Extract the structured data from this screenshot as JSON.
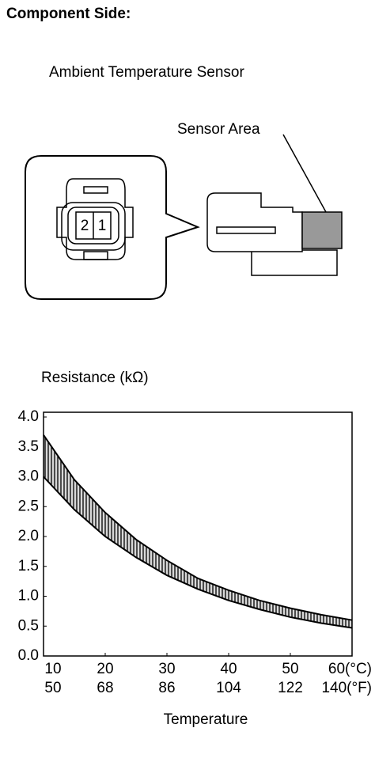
{
  "header": {
    "title": "Component Side:"
  },
  "diagram": {
    "title": "Ambient Temperature Sensor",
    "callout": "Sensor Area",
    "pins": [
      "2",
      "1"
    ]
  },
  "chart_data": {
    "type": "band",
    "title": "Resistance (kΩ)",
    "xlabel": "Temperature",
    "x": [
      10,
      15,
      20,
      25,
      30,
      35,
      40,
      45,
      50,
      55,
      60
    ],
    "upper": [
      3.7,
      2.95,
      2.4,
      1.95,
      1.6,
      1.3,
      1.1,
      0.93,
      0.8,
      0.69,
      0.6
    ],
    "lower": [
      3.0,
      2.45,
      2.0,
      1.65,
      1.35,
      1.12,
      0.93,
      0.78,
      0.65,
      0.55,
      0.47
    ],
    "color": "#000000",
    "xlim": [
      10,
      60
    ],
    "xticks": [
      10,
      20,
      30,
      40,
      50,
      {
        "value": 60,
        "label": "60(°C)"
      }
    ],
    "x2lim": [
      50,
      140
    ],
    "x2ticks": [
      50,
      68,
      86,
      104,
      122,
      {
        "value": 140,
        "label": "140(°F)"
      }
    ],
    "ylim": [
      0,
      4
    ],
    "yticks": [
      {
        "value": 0,
        "label": "0.0"
      },
      0.5,
      {
        "value": 1,
        "label": "1.0"
      },
      1.5,
      {
        "value": 2,
        "label": "2.0"
      },
      2.5,
      {
        "value": 3,
        "label": "3.0"
      },
      3.5,
      {
        "value": 4,
        "label": "4.0"
      }
    ],
    "grid": false
  }
}
